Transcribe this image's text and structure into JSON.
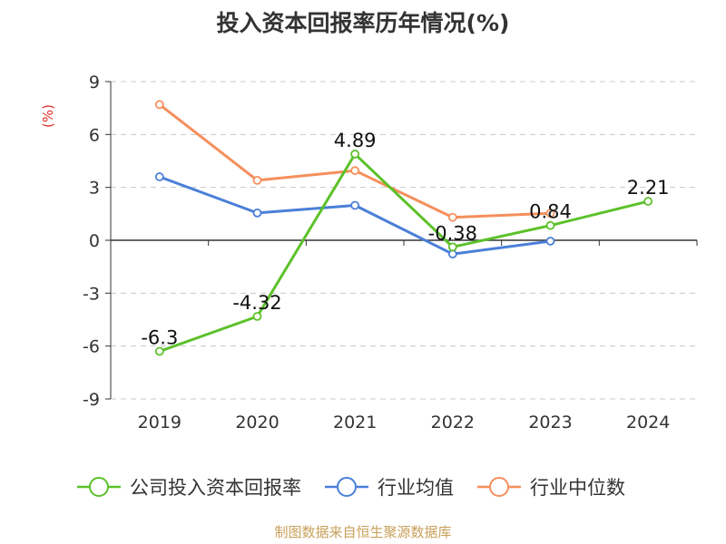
{
  "chart_data": {
    "type": "line",
    "title": "投入资本回报率历年情况(%)",
    "ylabel": "(%)",
    "categories": [
      "2019",
      "2020",
      "2021",
      "2022",
      "2023",
      "2024"
    ],
    "yticks": [
      "9",
      "6",
      "3",
      "0",
      "-3",
      "-6",
      "-9"
    ],
    "ylim": [
      -9,
      9
    ],
    "grid": true,
    "legend_position": "bottom",
    "series": [
      {
        "name": "公司投入资本回报率",
        "color": "#5cc12a",
        "values": [
          -6.3,
          -4.32,
          4.89,
          -0.38,
          0.84,
          2.21
        ],
        "labels": [
          "-6.3",
          "-4.32",
          "4.89",
          "-0.38",
          "0.84",
          "2.21"
        ]
      },
      {
        "name": "行业均值",
        "color": "#4a7fd8",
        "values": [
          3.6,
          1.55,
          1.98,
          -0.78,
          -0.05,
          null
        ]
      },
      {
        "name": "行业中位数",
        "color": "#f58f5c",
        "values": [
          7.7,
          3.4,
          3.95,
          1.3,
          1.53,
          null
        ]
      }
    ],
    "source": "制图数据来自恒生聚源数据库"
  }
}
